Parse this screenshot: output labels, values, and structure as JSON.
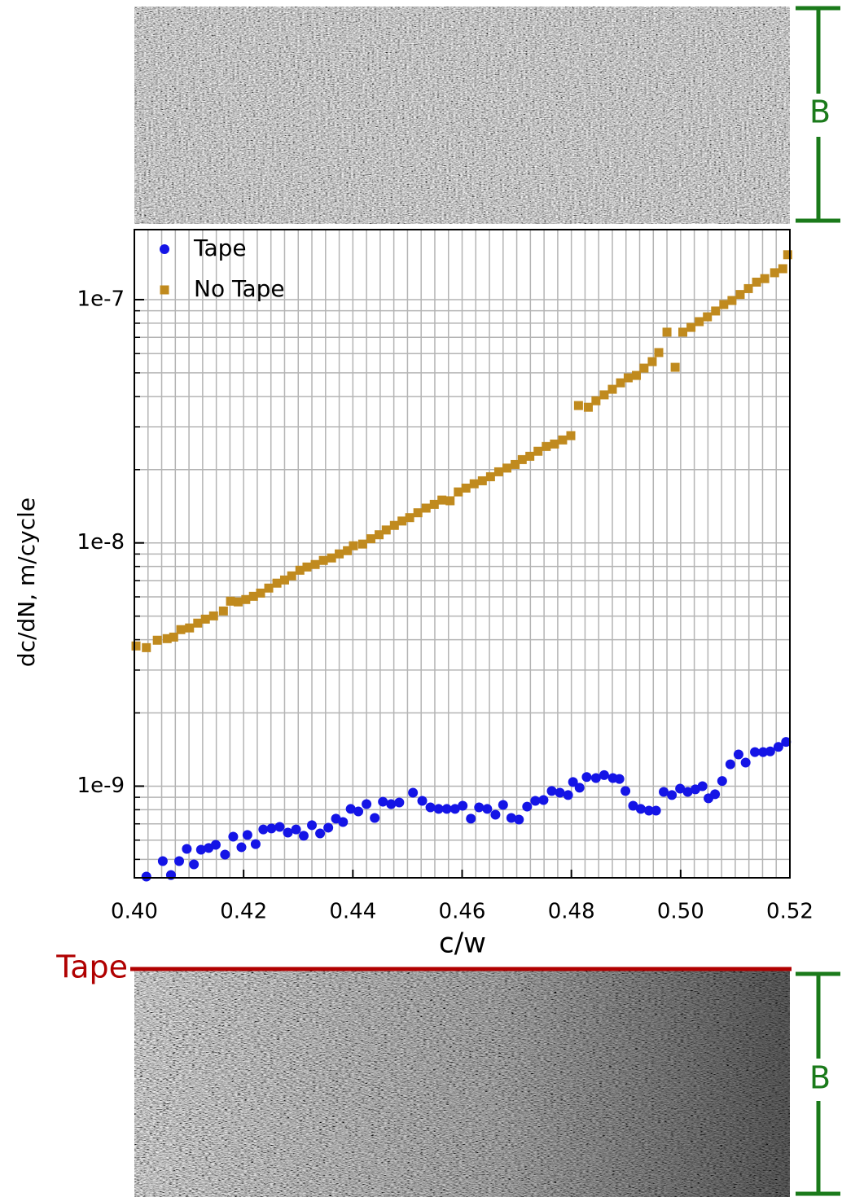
{
  "chart_data": {
    "type": "scatter",
    "xlabel": "c/w",
    "ylabel": "dc/dN, m/cycle",
    "yscale": "log",
    "grid": true,
    "legend": "upper left",
    "xlim": [
      0.4,
      0.52
    ],
    "ylim": [
      4.2e-10,
      1.94e-07
    ],
    "xticks": [
      {
        "value": 0.4,
        "label": "0.40"
      },
      {
        "value": 0.42,
        "label": "0.42"
      },
      {
        "value": 0.44,
        "label": "0.44"
      },
      {
        "value": 0.46,
        "label": "0.46"
      },
      {
        "value": 0.48,
        "label": "0.48"
      },
      {
        "value": 0.5,
        "label": "0.50"
      },
      {
        "value": 0.52,
        "label": "0.52"
      }
    ],
    "xminorticks": [
      0.4025,
      0.405,
      0.4075,
      0.41,
      0.4125,
      0.415,
      0.4175,
      0.4225,
      0.425,
      0.4275,
      0.43,
      0.4325,
      0.435,
      0.4375,
      0.4425,
      0.445,
      0.4475,
      0.45,
      0.4525,
      0.455,
      0.4575,
      0.4625,
      0.465,
      0.4675,
      0.47,
      0.4725,
      0.475,
      0.4775,
      0.4825,
      0.485,
      0.4875,
      0.49,
      0.4925,
      0.495,
      0.4975,
      0.5025,
      0.505,
      0.5075,
      0.51,
      0.5125,
      0.515,
      0.5175
    ],
    "yticks": [
      1e-09,
      1e-08,
      1e-07
    ],
    "yminorticks": [
      5e-10,
      6e-10,
      7e-10,
      8e-10,
      9e-10,
      2e-09,
      3e-09,
      4e-09,
      5e-09,
      6e-09,
      7e-09,
      8e-09,
      9e-09,
      2e-08,
      3e-08,
      4e-08,
      5e-08,
      6e-08,
      7e-08,
      8e-08,
      9e-08
    ],
    "series": [
      {
        "name": "Tape",
        "color": "#1414e6",
        "marker": "circle",
        "x": [
          0.4022,
          0.4052,
          0.4067,
          0.4082,
          0.4096,
          0.4109,
          0.4122,
          0.4136,
          0.4149,
          0.4166,
          0.4181,
          0.4196,
          0.4207,
          0.4222,
          0.4236,
          0.4251,
          0.4266,
          0.4281,
          0.4296,
          0.431,
          0.4325,
          0.434,
          0.4355,
          0.4369,
          0.4382,
          0.4396,
          0.441,
          0.4425,
          0.444,
          0.4455,
          0.447,
          0.4485,
          0.451,
          0.4527,
          0.4542,
          0.4557,
          0.4572,
          0.4587,
          0.4601,
          0.4616,
          0.4631,
          0.4646,
          0.4661,
          0.4675,
          0.469,
          0.4704,
          0.4719,
          0.4734,
          0.4749,
          0.4764,
          0.4779,
          0.4794,
          0.4803,
          0.4815,
          0.4828,
          0.4845,
          0.486,
          0.4876,
          0.4888,
          0.4899,
          0.4913,
          0.4927,
          0.4942,
          0.4955,
          0.4969,
          0.4984,
          0.4999,
          0.5013,
          0.5027,
          0.504,
          0.5051,
          0.5063,
          0.5076,
          0.5091,
          0.5106,
          0.5119,
          0.5136,
          0.5151,
          0.5164,
          0.5179,
          0.5193
        ],
        "values": [
          4.25e-10,
          4.92e-10,
          4.31e-10,
          4.92e-10,
          5.52e-10,
          4.77e-10,
          5.48e-10,
          5.57e-10,
          5.74e-10,
          5.23e-10,
          6.2e-10,
          5.61e-10,
          6.3e-10,
          5.78e-10,
          6.64e-10,
          6.7e-10,
          6.8e-10,
          6.44e-10,
          6.64e-10,
          6.25e-10,
          6.91e-10,
          6.39e-10,
          6.75e-10,
          7.35e-10,
          7.12e-10,
          8.06e-10,
          7.87e-10,
          8.44e-10,
          7.4e-10,
          8.63e-10,
          8.44e-10,
          8.57e-10,
          9.4e-10,
          8.7e-10,
          8.18e-10,
          8.06e-10,
          8.06e-10,
          8.06e-10,
          8.31e-10,
          7.35e-10,
          8.18e-10,
          8.06e-10,
          7.63e-10,
          8.37e-10,
          7.4e-10,
          7.29e-10,
          8.24e-10,
          8.7e-10,
          8.77e-10,
          9.55e-10,
          9.4e-10,
          9.19e-10,
          1.04e-09,
          9.85e-10,
          1.09e-09,
          1.08e-09,
          1.11e-09,
          1.08e-09,
          1.07e-09,
          9.55e-10,
          8.31e-10,
          8.06e-10,
          7.93e-10,
          7.93e-10,
          9.47e-10,
          9.19e-10,
          9.77e-10,
          9.47e-10,
          9.7e-10,
          1e-09,
          8.91e-10,
          9.26e-10,
          1.05e-09,
          1.23e-09,
          1.35e-09,
          1.25e-09,
          1.38e-09,
          1.38e-09,
          1.39e-09,
          1.45e-09,
          1.52e-09
        ]
      },
      {
        "name": "No Tape",
        "color": "#c08a1e",
        "marker": "square",
        "x": [
          0.4003,
          0.4022,
          0.4042,
          0.406,
          0.4072,
          0.4085,
          0.4101,
          0.4116,
          0.413,
          0.4145,
          0.4163,
          0.4176,
          0.419,
          0.4204,
          0.4218,
          0.4231,
          0.4246,
          0.4261,
          0.4275,
          0.4288,
          0.4303,
          0.4316,
          0.4331,
          0.4346,
          0.4361,
          0.4375,
          0.439,
          0.4401,
          0.4418,
          0.4433,
          0.4448,
          0.4461,
          0.4476,
          0.449,
          0.4504,
          0.4519,
          0.4534,
          0.4549,
          0.4563,
          0.4578,
          0.4593,
          0.4607,
          0.4622,
          0.4637,
          0.4652,
          0.4667,
          0.4682,
          0.4697,
          0.471,
          0.4724,
          0.4739,
          0.4754,
          0.4769,
          0.4784,
          0.4799,
          0.4813,
          0.4831,
          0.4845,
          0.486,
          0.4875,
          0.489,
          0.4904,
          0.4919,
          0.4933,
          0.4948,
          0.496,
          0.4975,
          0.499,
          0.5004,
          0.5019,
          0.5034,
          0.5049,
          0.5064,
          0.5079,
          0.5094,
          0.5109,
          0.5124,
          0.5139,
          0.5154,
          0.5172,
          0.5187,
          0.5196
        ],
        "values": [
          3.77e-09,
          3.71e-09,
          3.98e-09,
          4.04e-09,
          4.1e-09,
          4.4e-09,
          4.47e-09,
          4.68e-09,
          4.86e-09,
          5.01e-09,
          5.25e-09,
          5.76e-09,
          5.72e-09,
          5.85e-09,
          6.03e-09,
          6.22e-09,
          6.52e-09,
          6.83e-09,
          7.04e-09,
          7.32e-09,
          7.72e-09,
          7.96e-09,
          8.15e-09,
          8.47e-09,
          8.67e-09,
          9.01e-09,
          9.29e-09,
          9.73e-09,
          9.89e-09,
          1.04e-08,
          1.08e-08,
          1.13e-08,
          1.18e-08,
          1.23e-08,
          1.27e-08,
          1.33e-08,
          1.39e-08,
          1.44e-08,
          1.5e-08,
          1.49e-08,
          1.62e-08,
          1.68e-08,
          1.75e-08,
          1.8e-08,
          1.87e-08,
          1.96e-08,
          2.03e-08,
          2.1e-08,
          2.2e-08,
          2.27e-08,
          2.38e-08,
          2.49e-08,
          2.55e-08,
          2.65e-08,
          2.76e-08,
          3.67e-08,
          3.61e-08,
          3.84e-08,
          4.06e-08,
          4.28e-08,
          4.55e-08,
          4.77e-08,
          4.88e-08,
          5.23e-08,
          5.56e-08,
          6.06e-08,
          7.35e-08,
          5.27e-08,
          7.35e-08,
          7.69e-08,
          8.12e-08,
          8.5e-08,
          8.98e-08,
          9.55e-08,
          9.92e-08,
          1.05e-07,
          1.11e-07,
          1.18e-07,
          1.22e-07,
          1.29e-07,
          1.34e-07,
          1.53e-07
        ]
      }
    ],
    "annotations": {
      "top_bracket": "B",
      "tape_line": "Tape",
      "bottom_bracket": "B"
    }
  }
}
